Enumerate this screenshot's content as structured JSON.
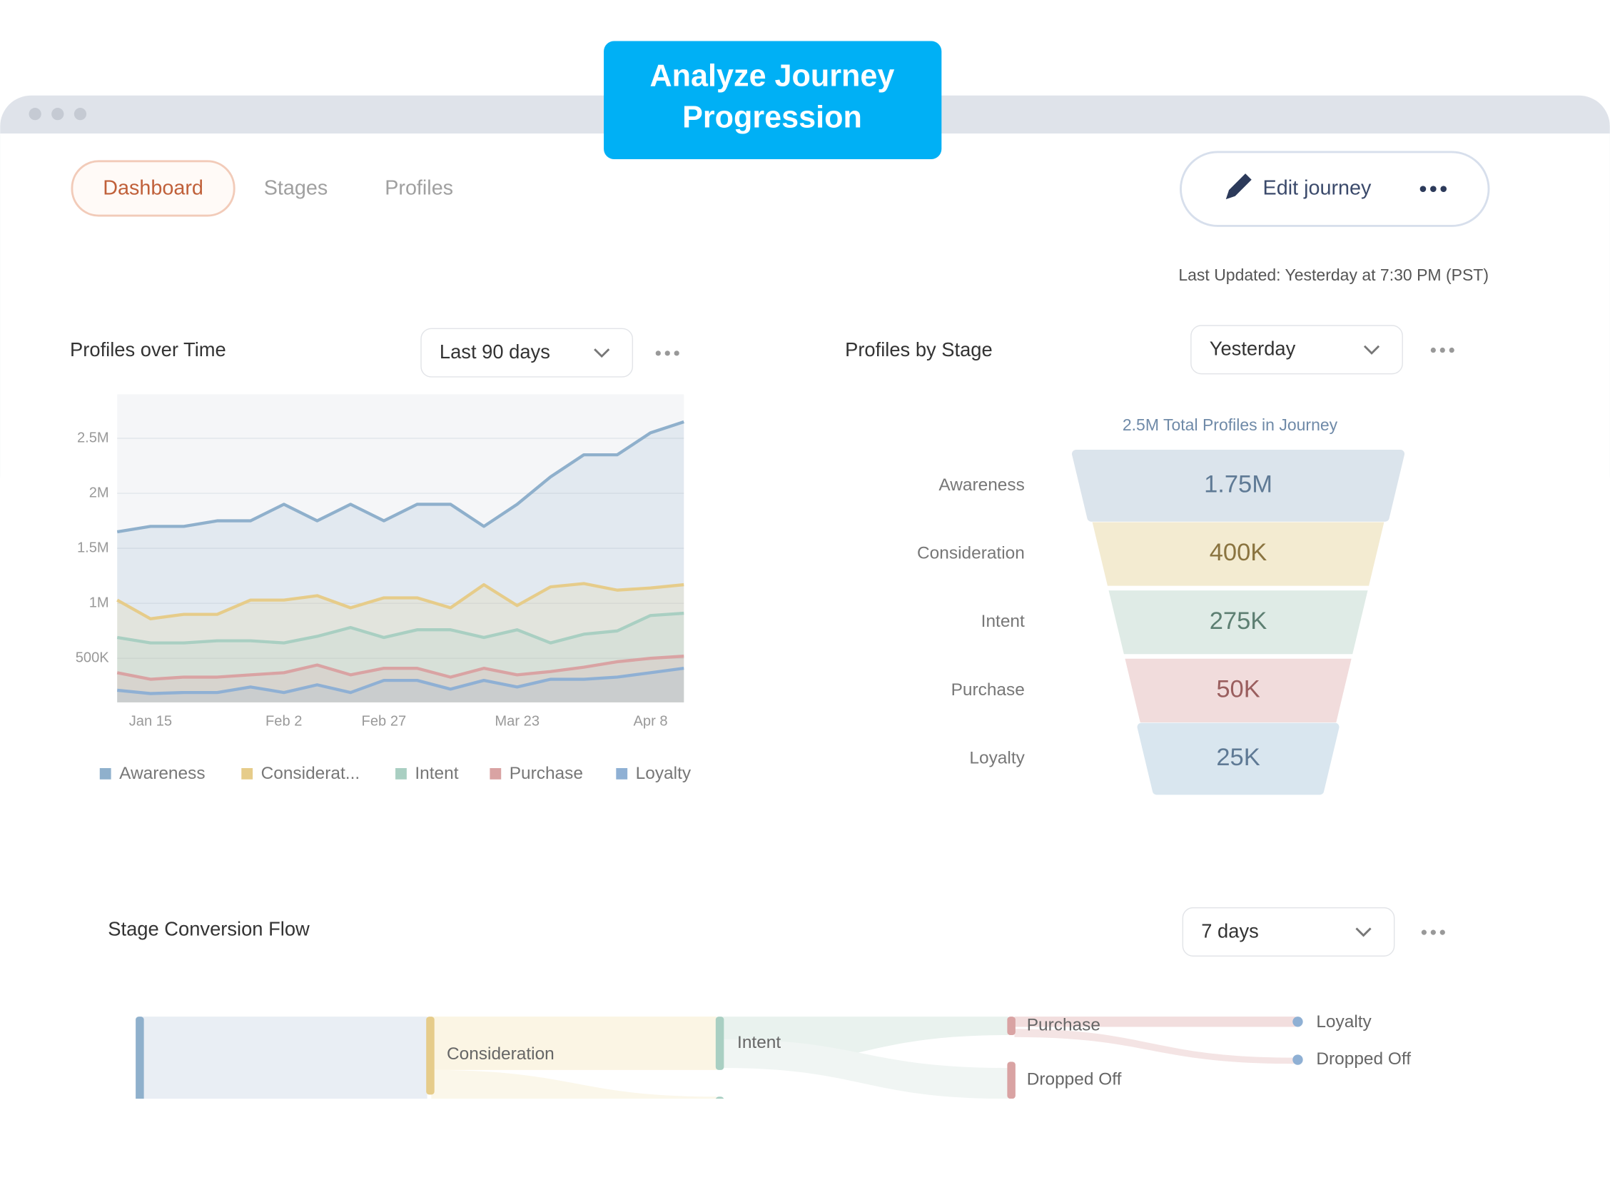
{
  "badge": {
    "line1": "Analyze Journey",
    "line2": "Progression"
  },
  "tabs": [
    "Dashboard",
    "Stages",
    "Profiles"
  ],
  "edit_button": "Edit journey",
  "last_updated": "Last Updated: Yesterday at 7:30 PM (PST)",
  "chart_data": [
    {
      "type": "line",
      "title": "Profiles over Time",
      "filter": "Last 90 days",
      "categories": [
        null,
        "Jan 15",
        null,
        null,
        null,
        "Feb 2",
        null,
        null,
        "Feb 27",
        null,
        null,
        null,
        "Mar 23",
        null,
        null,
        null,
        "Apr 8",
        null
      ],
      "ylim": [
        100000,
        2900000
      ],
      "yticks": [
        {
          "value": 500000,
          "label": "500K"
        },
        {
          "value": 1000000,
          "label": "1M"
        },
        {
          "value": 1500000,
          "label": "1.5M"
        },
        {
          "value": 2000000,
          "label": "2M"
        },
        {
          "value": 2500000,
          "label": "2.5M"
        }
      ],
      "grid": true,
      "series": [
        {
          "name": "Awareness",
          "color": "#8fb0cc",
          "values": [
            1650000,
            1700000,
            1700000,
            1750000,
            1750000,
            1900000,
            1750000,
            1900000,
            1750000,
            1900000,
            1900000,
            1700000,
            1900000,
            2150000,
            2350000,
            2350000,
            2550000,
            2650000
          ]
        },
        {
          "name": "Considerat...",
          "color": "#e6cc8a",
          "values": [
            1030000,
            860000,
            900000,
            900000,
            1030000,
            1030000,
            1070000,
            960000,
            1050000,
            1050000,
            960000,
            1170000,
            980000,
            1150000,
            1180000,
            1120000,
            1140000,
            1170000
          ]
        },
        {
          "name": "Intent",
          "color": "#a9cfc2",
          "values": [
            690000,
            640000,
            640000,
            660000,
            660000,
            640000,
            700000,
            780000,
            690000,
            760000,
            760000,
            690000,
            760000,
            640000,
            720000,
            750000,
            890000,
            910000
          ]
        },
        {
          "name": "Purchase",
          "color": "#d9a3a3",
          "values": [
            370000,
            310000,
            330000,
            330000,
            350000,
            370000,
            440000,
            350000,
            410000,
            410000,
            330000,
            410000,
            350000,
            380000,
            420000,
            470000,
            500000,
            520000
          ]
        },
        {
          "name": "Loyalty",
          "color": "#8fb0d4",
          "values": [
            210000,
            180000,
            190000,
            190000,
            240000,
            190000,
            260000,
            190000,
            300000,
            300000,
            220000,
            300000,
            240000,
            310000,
            310000,
            330000,
            370000,
            410000
          ]
        }
      ]
    },
    {
      "type": "funnel",
      "title": "Profiles by Stage",
      "filter": "Yesterday",
      "subtitle": "2.5M Total Profiles in Journey",
      "categories": [
        "Awareness",
        "Consideration",
        "Intent",
        "Purchase",
        "Loyalty"
      ],
      "values": [
        1750000,
        400000,
        275000,
        50000,
        25000
      ],
      "value_labels": [
        "1.75M",
        "400K",
        "275K",
        "50K",
        "25K"
      ],
      "colors": [
        "#dbe4ec",
        "#f3ebd1",
        "#dfebe6",
        "#f1dcdc",
        "#d9e6ef"
      ]
    }
  ],
  "flow": {
    "title": "Stage Conversion Flow",
    "filter": "7 days",
    "nodes": [
      "Consideration",
      "Intent",
      "Purchase",
      "Dropped Off",
      "Loyalty",
      "Dropped Off"
    ]
  }
}
